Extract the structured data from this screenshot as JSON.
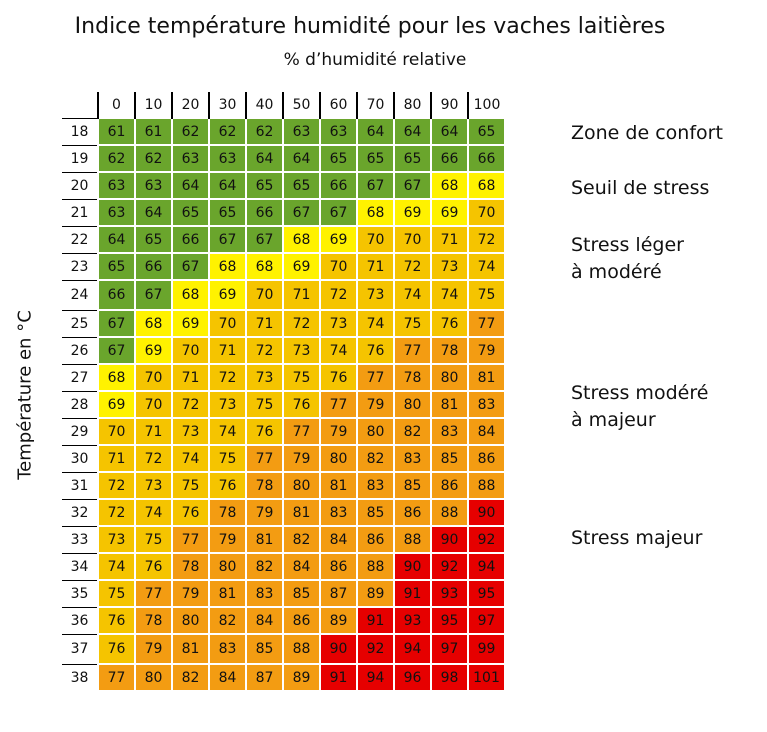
{
  "colors": {
    "confort": "#6aa52c",
    "seuil": "#fff200",
    "leger": "#f5c400",
    "modere": "#f39c12",
    "majeur": "#e60000"
  },
  "chart_data": {
    "type": "heatmap",
    "title": "Indice température humidité pour les vaches laitières",
    "xlabel": "% d’humidité relative",
    "ylabel": "Température en °C",
    "x": [
      "0",
      "10",
      "20",
      "30",
      "40",
      "50",
      "60",
      "70",
      "80",
      "90",
      "100"
    ],
    "y": [
      "18",
      "19",
      "20",
      "21",
      "22",
      "23",
      "24",
      "25",
      "26",
      "27",
      "28",
      "29",
      "30",
      "31",
      "32",
      "33",
      "34",
      "35",
      "36",
      "37",
      "38"
    ],
    "values": [
      [
        61,
        61,
        62,
        62,
        62,
        63,
        63,
        64,
        64,
        64,
        65
      ],
      [
        62,
        62,
        63,
        63,
        64,
        64,
        65,
        65,
        65,
        66,
        66
      ],
      [
        63,
        63,
        64,
        64,
        65,
        65,
        66,
        67,
        67,
        68,
        68
      ],
      [
        63,
        64,
        65,
        65,
        66,
        67,
        67,
        68,
        69,
        69,
        70
      ],
      [
        64,
        65,
        66,
        67,
        67,
        68,
        69,
        70,
        70,
        71,
        72
      ],
      [
        65,
        66,
        67,
        68,
        68,
        69,
        70,
        71,
        72,
        73,
        74
      ],
      [
        66,
        67,
        68,
        69,
        70,
        71,
        72,
        73,
        74,
        74,
        75
      ],
      [
        67,
        68,
        69,
        70,
        71,
        72,
        73,
        74,
        75,
        76,
        77
      ],
      [
        67,
        69,
        70,
        71,
        72,
        73,
        74,
        76,
        77,
        78,
        79
      ],
      [
        68,
        70,
        71,
        72,
        73,
        75,
        76,
        77,
        78,
        80,
        81
      ],
      [
        69,
        70,
        72,
        73,
        75,
        76,
        77,
        79,
        80,
        81,
        83
      ],
      [
        70,
        71,
        73,
        74,
        76,
        77,
        79,
        80,
        82,
        83,
        84
      ],
      [
        71,
        72,
        74,
        75,
        77,
        79,
        80,
        82,
        83,
        85,
        86
      ],
      [
        72,
        73,
        75,
        76,
        78,
        80,
        81,
        83,
        85,
        86,
        88
      ],
      [
        72,
        74,
        76,
        78,
        79,
        81,
        83,
        85,
        86,
        88,
        90
      ],
      [
        73,
        75,
        77,
        79,
        81,
        82,
        84,
        86,
        88,
        90,
        92
      ],
      [
        74,
        76,
        78,
        80,
        82,
        84,
        86,
        88,
        90,
        92,
        94
      ],
      [
        75,
        77,
        79,
        81,
        83,
        85,
        87,
        89,
        91,
        93,
        95
      ],
      [
        76,
        78,
        80,
        82,
        84,
        86,
        89,
        91,
        93,
        95,
        97
      ],
      [
        76,
        79,
        81,
        83,
        85,
        88,
        90,
        92,
        94,
        97,
        99
      ],
      [
        77,
        80,
        82,
        84,
        87,
        89,
        91,
        94,
        96,
        98,
        101
      ]
    ],
    "zones": [
      {
        "key": "confort",
        "label": "Zone de confort",
        "max": 67
      },
      {
        "key": "seuil",
        "label": "Seuil de stress",
        "max": 69
      },
      {
        "key": "leger",
        "label": "Stress léger\nà modéré",
        "max": 76
      },
      {
        "key": "modere",
        "label": "Stress modéré\nà majeur",
        "max": 89
      },
      {
        "key": "majeur",
        "label": "Stress majeur",
        "max": 999
      }
    ],
    "legend_placement": "right"
  }
}
